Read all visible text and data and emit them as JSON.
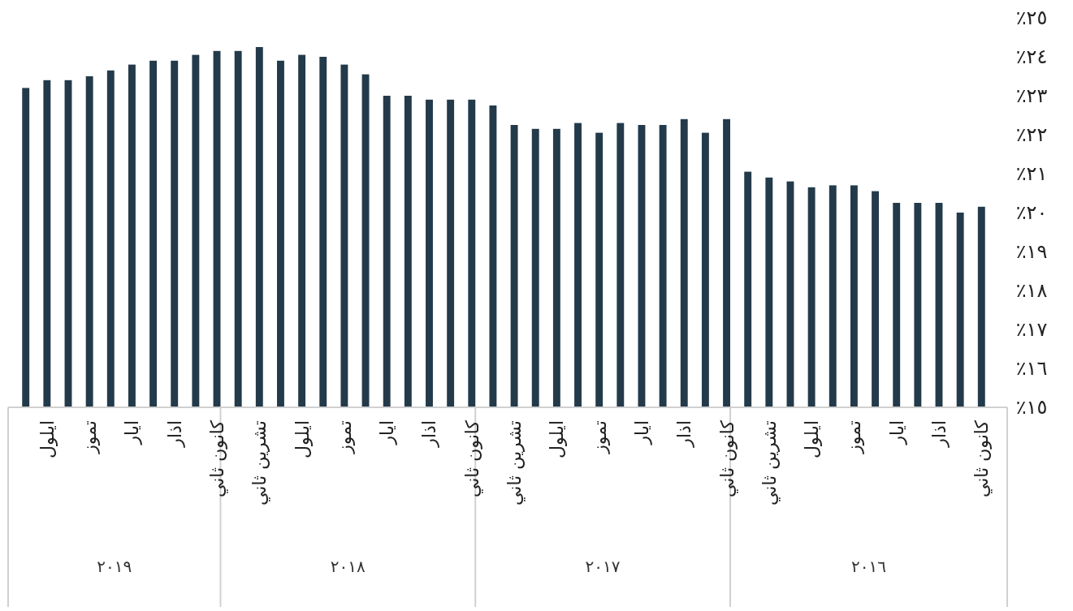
{
  "chart_data": {
    "type": "bar",
    "categories": [
      null,
      "ايلول",
      null,
      "تموز",
      null,
      "ايار",
      null,
      "اذار",
      null,
      "كانون ثاني",
      null,
      "تشرين ثاني",
      null,
      "ايلول",
      null,
      "تموز",
      null,
      "ايار",
      null,
      "اذار",
      null,
      "كانون ثاني",
      null,
      "تشرين ثاني",
      null,
      "ايلول",
      null,
      "تموز",
      null,
      "ايار",
      null,
      "اذار",
      null,
      "كانون ثاني",
      null,
      "تشرين ثاني",
      null,
      "ايلول",
      null,
      "تموز",
      null,
      "ايار",
      null,
      "اذار",
      null,
      "كانون ثاني"
    ],
    "values": [
      23.2,
      23.4,
      23.4,
      23.5,
      23.65,
      23.8,
      23.9,
      23.9,
      24.05,
      24.15,
      24.15,
      24.25,
      23.9,
      24.05,
      24,
      23.8,
      23.55,
      23,
      23,
      22.9,
      22.9,
      22.9,
      22.75,
      22.25,
      22.15,
      22.15,
      22.3,
      22.05,
      22.3,
      22.25,
      22.25,
      22.4,
      22.05,
      22.4,
      21.05,
      20.9,
      20.8,
      20.65,
      20.7,
      20.7,
      20.55,
      20.25,
      20.25,
      20.25,
      20,
      20.15
    ],
    "color": "#233a4a",
    "ylim": [
      15,
      25
    ],
    "yticks": [
      {
        "value": 15,
        "label": "٪١٥"
      },
      {
        "value": 16,
        "label": "٪١٦"
      },
      {
        "value": 17,
        "label": "٪١٧"
      },
      {
        "value": 18,
        "label": "٪١٨"
      },
      {
        "value": 19,
        "label": "٪١٩"
      },
      {
        "value": 20,
        "label": "٪٢٠"
      },
      {
        "value": 21,
        "label": "٪٢١"
      },
      {
        "value": 22,
        "label": "٪٢٢"
      },
      {
        "value": 23,
        "label": "٪٢٣"
      },
      {
        "value": 24,
        "label": "٪٢٤"
      },
      {
        "value": 25,
        "label": "٪٢٥"
      }
    ],
    "annotations": [
      "٢٠١٩",
      "٢٠١٨",
      "٢٠١٧",
      "٢٠١٦"
    ]
  }
}
